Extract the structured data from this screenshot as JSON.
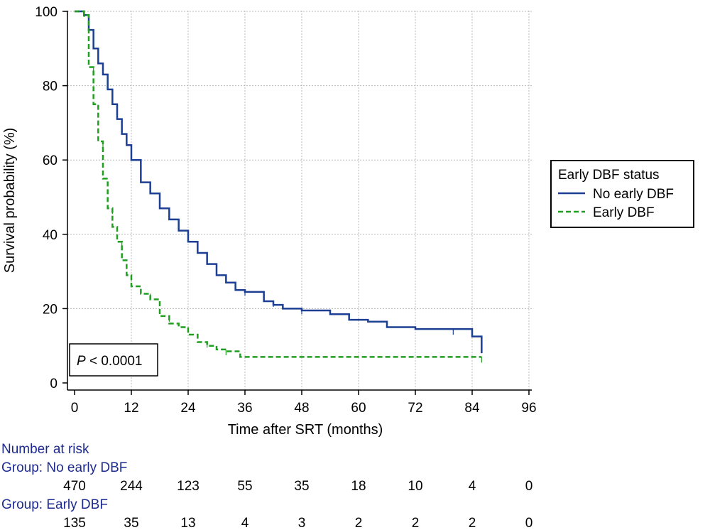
{
  "chart_data": {
    "type": "line",
    "title": "",
    "xlabel": "Time after SRT (months)",
    "ylabel": "Survival probability (%)",
    "xlim": [
      0,
      96
    ],
    "ylim": [
      0,
      100
    ],
    "x_ticks": [
      0,
      12,
      24,
      36,
      48,
      60,
      72,
      84,
      96
    ],
    "y_ticks": [
      0,
      20,
      40,
      60,
      80,
      100
    ],
    "grid": true,
    "step": true,
    "legend": {
      "title": "Early DBF status",
      "placement": "right-middle"
    },
    "annotation": {
      "p_label": "P",
      "p_value": " < 0.0001"
    },
    "series": [
      {
        "name": "No early DBF",
        "color": "#1c3f94",
        "dash": "solid",
        "x": [
          0,
          2,
          3,
          4,
          5,
          6,
          7,
          8,
          9,
          10,
          11,
          12,
          14,
          16,
          18,
          20,
          22,
          24,
          26,
          28,
          30,
          32,
          34,
          36,
          40,
          42,
          44,
          48,
          54,
          58,
          62,
          66,
          72,
          80,
          84,
          86
        ],
        "y": [
          100,
          99,
          95,
          90,
          86,
          83,
          79,
          75,
          71,
          67,
          64,
          60,
          54,
          51,
          47,
          44,
          41,
          38,
          35,
          32,
          29,
          27,
          25,
          24.5,
          22,
          21,
          20,
          19.5,
          18.5,
          17,
          16.5,
          15,
          14.5,
          14.5,
          12.5,
          8
        ]
      },
      {
        "name": "Early DBF",
        "color": "#1f9e1f",
        "dash": "dashed",
        "x": [
          0,
          2,
          3,
          4,
          5,
          6,
          7,
          8,
          9,
          10,
          11,
          12,
          14,
          16,
          18,
          20,
          22,
          24,
          26,
          28,
          30,
          32,
          35,
          86
        ],
        "y": [
          100,
          99,
          85,
          75,
          65,
          55,
          47,
          42,
          38,
          33,
          29,
          26,
          24,
          22.5,
          18,
          16,
          15,
          13,
          11,
          10,
          9,
          8.5,
          7,
          7
        ]
      }
    ],
    "risk_table": {
      "title": "Number at risk",
      "times": [
        0,
        12,
        24,
        36,
        48,
        60,
        72,
        84,
        96
      ],
      "groups": [
        {
          "label": "Group: No early DBF",
          "counts": [
            "470",
            "244",
            "123",
            "55",
            "35",
            "18",
            "10",
            "4",
            "0"
          ]
        },
        {
          "label": "Group: Early DBF",
          "counts": [
            "135",
            "35",
            "13",
            "4",
            "3",
            "2",
            "2",
            "2",
            "0"
          ]
        }
      ]
    }
  }
}
